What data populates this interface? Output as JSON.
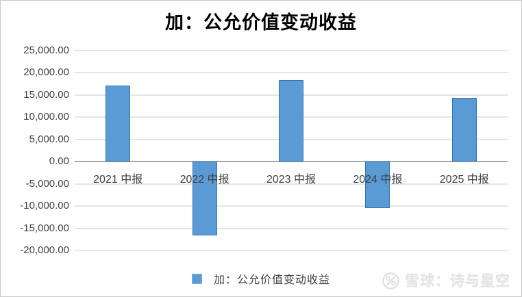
{
  "title": "加：公允价值变动收益",
  "chart_data": {
    "type": "bar",
    "categories": [
      "2021 中报",
      "2022 中报",
      "2023 中报",
      "2024 中报",
      "2025 中报"
    ],
    "values": [
      17100,
      -16600,
      18300,
      -10400,
      14400
    ],
    "series": [
      {
        "name": "加：公允价值变动收益",
        "values": [
          17100,
          -16600,
          18300,
          -10400,
          14400
        ]
      }
    ],
    "title": "加：公允价值变动收益",
    "xlabel": "",
    "ylabel": "",
    "ylim": [
      -20000,
      25000
    ],
    "ytick_interval": 5000,
    "yticks": [
      {
        "value": 25000,
        "label": "25,000.00"
      },
      {
        "value": 20000,
        "label": "20,000.00"
      },
      {
        "value": 15000,
        "label": "15,000.00"
      },
      {
        "value": 10000,
        "label": "10,000.00"
      },
      {
        "value": 5000,
        "label": "5,000.00"
      },
      {
        "value": 0,
        "label": "0.00"
      },
      {
        "value": -5000,
        "label": "-5,000.00"
      },
      {
        "value": -10000,
        "label": "-10,000.00"
      },
      {
        "value": -15000,
        "label": "-15,000.00"
      },
      {
        "value": -20000,
        "label": "-20,000.00"
      }
    ],
    "grid": true,
    "legend_position": "bottom",
    "bar_color": "#5B9BD5",
    "bar_border_color": "#2E75B6",
    "gridline_color": "#e4e4e4",
    "zero_line_color": "#a8a8a8"
  },
  "legend": {
    "label": "加：公允价值变动收益",
    "swatch_color": "#5B9BD5"
  },
  "watermark": {
    "brand": "雪球：诗与星空",
    "logo": "xueqiu-percent-circle-logo",
    "color": "#e4e4e4"
  }
}
